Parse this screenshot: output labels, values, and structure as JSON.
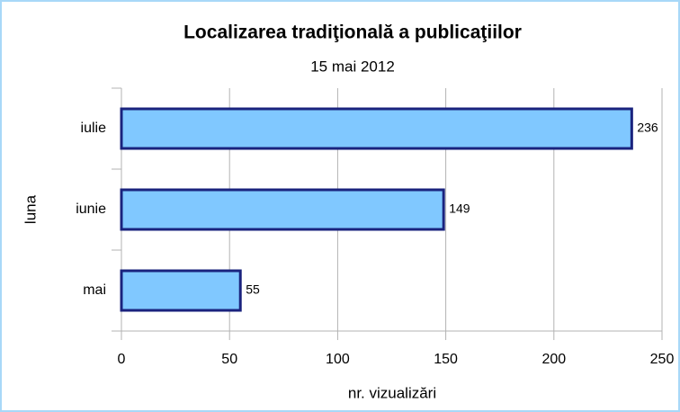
{
  "chart_data": {
    "type": "bar",
    "orientation": "horizontal",
    "title": "Localizarea tradiţională a publicaţiilor",
    "subtitle": "15 mai 2012",
    "x_label": "nr. vizualizări",
    "y_label": "luna",
    "categories": [
      "mai",
      "iunie",
      "iulie"
    ],
    "values": [
      55,
      149,
      236
    ],
    "color": "#80c8ff",
    "edge_color": "#1a237e",
    "xlim": [
      0,
      250
    ],
    "xticks": [
      0,
      50,
      100,
      150,
      200,
      250
    ],
    "grid": true
  }
}
